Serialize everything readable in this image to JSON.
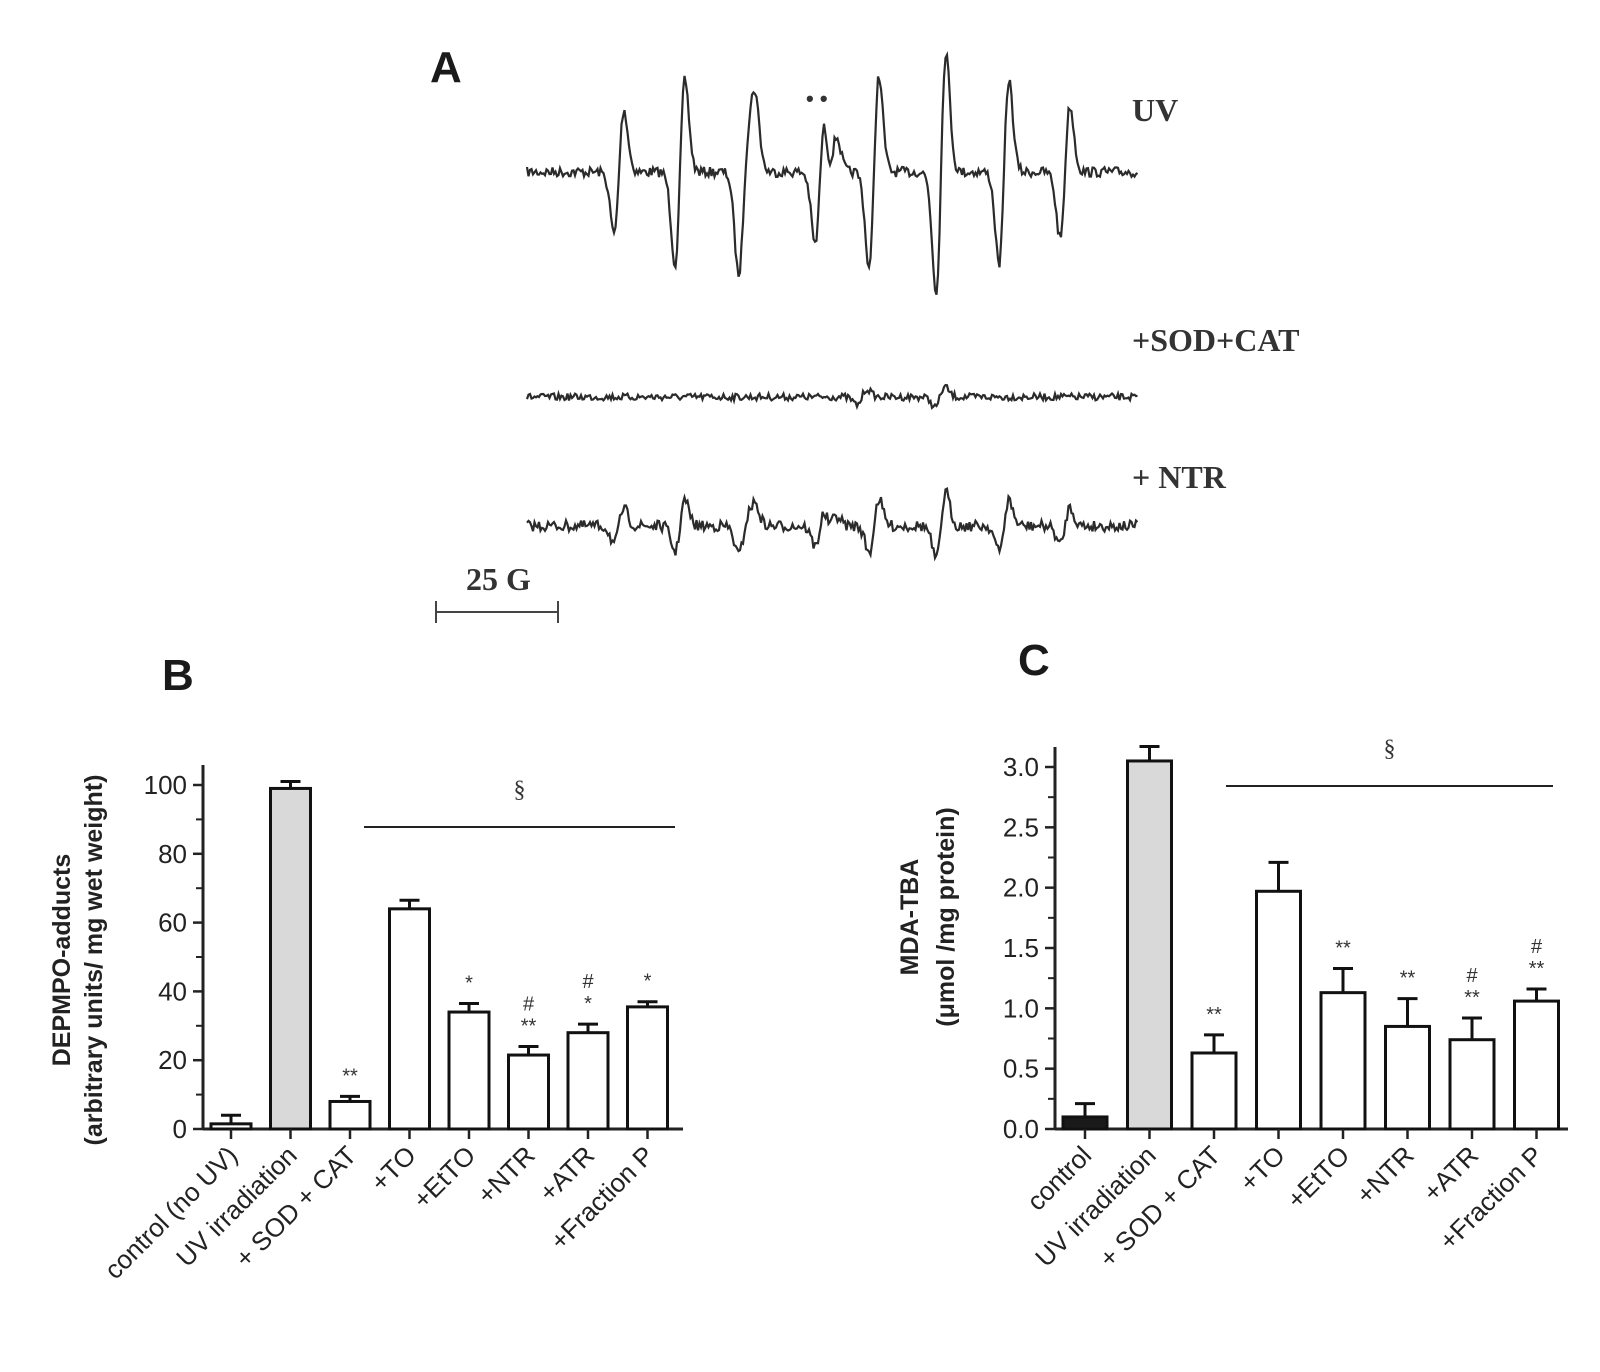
{
  "panel_a": {
    "letter": "A",
    "trace_labels": [
      "UV",
      "+SOD+CAT",
      "+ NTR"
    ],
    "scale_bar_label": "25 G",
    "peak_marker": "• •"
  },
  "chart_data": [
    {
      "id": "B",
      "type": "bar",
      "letter": "B",
      "ylabel_line1": "DEPMPO-adducts",
      "ylabel_line2": "(arbitrary units/ mg wet weight)",
      "ylim": [
        0,
        100
      ],
      "yticks": [
        "0",
        "20",
        "40",
        "60",
        "80",
        "100"
      ],
      "categories": [
        "control (no UV)",
        "UV irradiation",
        "+ SOD + CAT",
        "+TO",
        "+EtTO",
        "+NTR",
        "+ATR",
        "+Fraction  P"
      ],
      "values": [
        1.5,
        99,
        8,
        64,
        34,
        21.5,
        28,
        35.5
      ],
      "errors": [
        2.5,
        2,
        1.5,
        2.5,
        2.5,
        2.5,
        2.5,
        1.5
      ],
      "fills": [
        "#ffffff",
        "#d9d9d9",
        "#ffffff",
        "#ffffff",
        "#ffffff",
        "#ffffff",
        "#ffffff",
        "#ffffff"
      ],
      "annotations": [
        "",
        "",
        "**",
        "",
        "*",
        "#\n**",
        "#\n*",
        "*"
      ],
      "bracket_label": "§"
    },
    {
      "id": "C",
      "type": "bar",
      "letter": "C",
      "ylabel_line1": "MDA-TBA",
      "ylabel_line2": "(μmol /mg protein)",
      "ylim": [
        0,
        3.0
      ],
      "yticks": [
        "0.0",
        "0.5",
        "1.0",
        "1.5",
        "2.0",
        "2.5",
        "3.0"
      ],
      "categories": [
        "control",
        "UV irradiation",
        "+ SOD + CAT",
        "+TO",
        "+EtTO",
        "+NTR",
        "+ATR",
        "+Fraction P"
      ],
      "values": [
        0.1,
        3.05,
        0.63,
        1.97,
        1.13,
        0.85,
        0.74,
        1.06
      ],
      "errors": [
        0.11,
        0.12,
        0.15,
        0.24,
        0.2,
        0.23,
        0.18,
        0.1
      ],
      "fills": [
        "#1a1a1a",
        "#d9d9d9",
        "#ffffff",
        "#ffffff",
        "#ffffff",
        "#ffffff",
        "#ffffff",
        "#ffffff"
      ],
      "annotations": [
        "",
        "",
        "**",
        "",
        "**",
        "**",
        "#\n**",
        "#\n**"
      ],
      "bracket_label": "§"
    }
  ]
}
